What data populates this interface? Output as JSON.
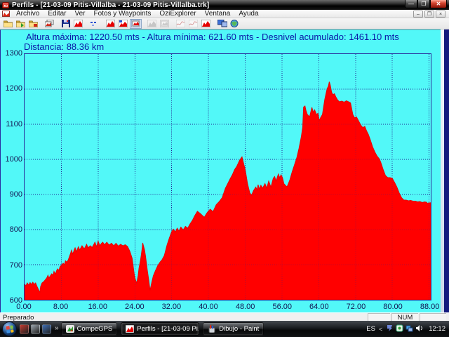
{
  "window": {
    "title": "Perfils - [21-03-09 Pitis-Villalba - 21-03-09 Pitis-Villalba.trk]"
  },
  "menu": {
    "items": [
      "Archivo",
      "Editar",
      "Ver",
      "Fotos y Waypoints",
      "OziExplorer",
      "Ventana",
      "Ayuda"
    ]
  },
  "toolbar": {
    "icons": [
      {
        "name": "open-profile",
        "glyph": "folder",
        "state": "normal",
        "sep": false
      },
      {
        "name": "open-track",
        "glyph": "folder-green",
        "state": "normal",
        "sep": false
      },
      {
        "name": "open-waypoints",
        "glyph": "folder-red",
        "state": "normal",
        "sep": false
      },
      {
        "name": "photos-waypoints",
        "glyph": "photo-stack",
        "state": "normal",
        "sep": true
      },
      {
        "name": "save-profile",
        "glyph": "floppy",
        "state": "normal",
        "sep": true
      },
      {
        "name": "profile-chart",
        "glyph": "chart-red",
        "state": "normal",
        "sep": false
      },
      {
        "name": "marks",
        "glyph": "blue-marks",
        "state": "normal",
        "sep": true
      },
      {
        "name": "altitude-profile",
        "glyph": "chart-red",
        "state": "normal",
        "sep": true
      },
      {
        "name": "speed-profile",
        "glyph": "chart-red-blue",
        "state": "normal",
        "sep": false
      },
      {
        "name": "framed-profile",
        "glyph": "chart-red-framed",
        "state": "pressed",
        "sep": false
      },
      {
        "name": "gray-profile",
        "glyph": "chart-gray",
        "state": "disabled",
        "sep": true
      },
      {
        "name": "gray-framed-profile",
        "glyph": "chart-gray-framed",
        "state": "disabled",
        "sep": false
      },
      {
        "name": "line-chart-a",
        "glyph": "line-gray",
        "state": "disabled",
        "sep": true
      },
      {
        "name": "line-chart-b",
        "glyph": "line-gray",
        "state": "disabled",
        "sep": false
      },
      {
        "name": "red-profile",
        "glyph": "chart-red",
        "state": "normal",
        "sep": false
      },
      {
        "name": "dual-screens",
        "glyph": "screens",
        "state": "normal",
        "sep": true
      },
      {
        "name": "map-view",
        "glyph": "globe",
        "state": "normal",
        "sep": false
      }
    ]
  },
  "header": {
    "stats_line": "Altura máxima: 1220.50 mts - Altura mínima: 621.60 mts - Desnivel acumulado: 1461.10 mts",
    "distance_line": "Distancia: 88.36 km"
  },
  "chart_data": {
    "type": "area",
    "series_name": "altitude-profile",
    "x_unit": "km",
    "y_unit": "mts",
    "x_range": [
      0,
      88.36
    ],
    "y_range": [
      600,
      1300
    ],
    "x_ticks": [
      0,
      8,
      16,
      24,
      32,
      40,
      48,
      56,
      64,
      72,
      80,
      88
    ],
    "x_tick_labels": [
      "0.00",
      "8.00",
      "16.00",
      "24.00",
      "32.00",
      "40.00",
      "48.00",
      "56.00",
      "64.00",
      "72.00",
      "80.00",
      "88.00"
    ],
    "y_ticks": [
      1300,
      1200,
      1100,
      1000,
      900,
      800,
      700,
      600
    ],
    "y_tick_labels": [
      "1300",
      "1200",
      "1100",
      "1000",
      "900",
      "800",
      "700",
      "600"
    ],
    "grid": true,
    "legend": false,
    "bg_color": "#52F8F8",
    "fill_color": "#FF0000",
    "grid_color": "#23238F",
    "max_altitude_mts": 1220.5,
    "min_altitude_mts": 621.6,
    "cumulative_gain_mts": 1461.1,
    "distance_km": 88.36,
    "points": [
      [
        0,
        644
      ],
      [
        0.3,
        640
      ],
      [
        0.6,
        648
      ],
      [
        0.9,
        642
      ],
      [
        1.2,
        649
      ],
      [
        1.5,
        644
      ],
      [
        1.8,
        650
      ],
      [
        2.1,
        644
      ],
      [
        2.4,
        648
      ],
      [
        2.7,
        638
      ],
      [
        3,
        630
      ],
      [
        3.2,
        624
      ],
      [
        3.35,
        622
      ],
      [
        3.5,
        638
      ],
      [
        3.8,
        648
      ],
      [
        4.1,
        651
      ],
      [
        4.4,
        655
      ],
      [
        4.7,
        660
      ],
      [
        4.9,
        664
      ],
      [
        5.1,
        670
      ],
      [
        5.3,
        662
      ],
      [
        5.6,
        668
      ],
      [
        5.9,
        674
      ],
      [
        6.2,
        670
      ],
      [
        6.4,
        681
      ],
      [
        6.7,
        673
      ],
      [
        7,
        684
      ],
      [
        7.2,
        688
      ],
      [
        7.5,
        684
      ],
      [
        7.7,
        694
      ],
      [
        8,
        698
      ],
      [
        8.4,
        704
      ],
      [
        8.7,
        700
      ],
      [
        8.9,
        711
      ],
      [
        9.2,
        707
      ],
      [
        9.5,
        714
      ],
      [
        9.7,
        721
      ],
      [
        10,
        732
      ],
      [
        10.2,
        741
      ],
      [
        10.5,
        730
      ],
      [
        10.8,
        742
      ],
      [
        11,
        748
      ],
      [
        11.3,
        737
      ],
      [
        11.7,
        751
      ],
      [
        12,
        742
      ],
      [
        12.5,
        754
      ],
      [
        13,
        745
      ],
      [
        13.5,
        758
      ],
      [
        13.8,
        748
      ],
      [
        14.3,
        754
      ],
      [
        14.7,
        749
      ],
      [
        15,
        756
      ],
      [
        15.3,
        764
      ],
      [
        15.7,
        751
      ],
      [
        16,
        767
      ],
      [
        16.4,
        754
      ],
      [
        16.7,
        760
      ],
      [
        17,
        764
      ],
      [
        17.4,
        757
      ],
      [
        17.9,
        764
      ],
      [
        18.4,
        756
      ],
      [
        18.9,
        761
      ],
      [
        19.4,
        754
      ],
      [
        19.9,
        761
      ],
      [
        20.4,
        753
      ],
      [
        20.9,
        758
      ],
      [
        21.4,
        754
      ],
      [
        21.9,
        757
      ],
      [
        22.4,
        752
      ],
      [
        22.9,
        738
      ],
      [
        23.4,
        718
      ],
      [
        23.6,
        698
      ],
      [
        23.9,
        668
      ],
      [
        24.2,
        654
      ],
      [
        24.4,
        648
      ],
      [
        24.7,
        668
      ],
      [
        24.9,
        690
      ],
      [
        25.2,
        711
      ],
      [
        25.4,
        728
      ],
      [
        25.6,
        748
      ],
      [
        25.7,
        762
      ],
      [
        25.9,
        752
      ],
      [
        26.1,
        742
      ],
      [
        26.3,
        726
      ],
      [
        26.5,
        706
      ],
      [
        26.7,
        684
      ],
      [
        27,
        658
      ],
      [
        27.3,
        627
      ],
      [
        27.7,
        651
      ],
      [
        28,
        668
      ],
      [
        28.5,
        684
      ],
      [
        29,
        698
      ],
      [
        29.5,
        708
      ],
      [
        29.9,
        714
      ],
      [
        30.4,
        726
      ],
      [
        31,
        756
      ],
      [
        31.5,
        776
      ],
      [
        32,
        794
      ],
      [
        32.4,
        801
      ],
      [
        32.8,
        793
      ],
      [
        33.2,
        804
      ],
      [
        33.6,
        796
      ],
      [
        34,
        807
      ],
      [
        34.5,
        799
      ],
      [
        35,
        809
      ],
      [
        35.5,
        804
      ],
      [
        36,
        816
      ],
      [
        36.5,
        826
      ],
      [
        37,
        839
      ],
      [
        37.6,
        852
      ],
      [
        38.2,
        846
      ],
      [
        38.6,
        841
      ],
      [
        39.1,
        835
      ],
      [
        39.6,
        846
      ],
      [
        40,
        853
      ],
      [
        40.4,
        858
      ],
      [
        41,
        851
      ],
      [
        41.7,
        871
      ],
      [
        42.3,
        879
      ],
      [
        43,
        891
      ],
      [
        43.7,
        918
      ],
      [
        44.2,
        931
      ],
      [
        44.7,
        944
      ],
      [
        45.2,
        956
      ],
      [
        45.7,
        971
      ],
      [
        46.2,
        981
      ],
      [
        46.8,
        998
      ],
      [
        47.3,
        1007
      ],
      [
        47.7,
        986
      ],
      [
        48,
        971
      ],
      [
        48.5,
        931
      ],
      [
        49,
        904
      ],
      [
        49.4,
        898
      ],
      [
        49.8,
        911
      ],
      [
        50.3,
        921
      ],
      [
        50.6,
        913
      ],
      [
        50.8,
        928
      ],
      [
        51.1,
        915
      ],
      [
        51.4,
        926
      ],
      [
        51.8,
        918
      ],
      [
        52.3,
        931
      ],
      [
        52.7,
        918
      ],
      [
        53.1,
        938
      ],
      [
        53.6,
        921
      ],
      [
        54.1,
        946
      ],
      [
        54.4,
        951
      ],
      [
        54.7,
        938
      ],
      [
        55.2,
        958
      ],
      [
        55.5,
        948
      ],
      [
        55.8,
        956
      ],
      [
        56.1,
        948
      ],
      [
        56.4,
        931
      ],
      [
        56.9,
        924
      ],
      [
        57.1,
        922
      ],
      [
        57.7,
        941
      ],
      [
        58.2,
        964
      ],
      [
        58.7,
        984
      ],
      [
        59.2,
        1004
      ],
      [
        59.7,
        1031
      ],
      [
        60.2,
        1064
      ],
      [
        60.5,
        1091
      ],
      [
        60.7,
        1149
      ],
      [
        61,
        1152
      ],
      [
        61.2,
        1140
      ],
      [
        61.5,
        1128
      ],
      [
        62,
        1121
      ],
      [
        62.5,
        1148
      ],
      [
        62.8,
        1134
      ],
      [
        63.1,
        1141
      ],
      [
        63.5,
        1128
      ],
      [
        63.8,
        1131
      ],
      [
        64.1,
        1111
      ],
      [
        64.4,
        1119
      ],
      [
        64.8,
        1128
      ],
      [
        65.3,
        1171
      ],
      [
        65.8,
        1201
      ],
      [
        66.1,
        1209
      ],
      [
        66.3,
        1221
      ],
      [
        66.5,
        1211
      ],
      [
        66.8,
        1191
      ],
      [
        67.1,
        1184
      ],
      [
        67.4,
        1187
      ],
      [
        67.7,
        1178
      ],
      [
        68.1,
        1169
      ],
      [
        68.5,
        1164
      ],
      [
        69,
        1166
      ],
      [
        69.5,
        1163
      ],
      [
        70,
        1167
      ],
      [
        70.5,
        1164
      ],
      [
        70.9,
        1161
      ],
      [
        71.4,
        1128
      ],
      [
        71.8,
        1118
      ],
      [
        72.2,
        1121
      ],
      [
        72.6,
        1111
      ],
      [
        73,
        1101
      ],
      [
        73.4,
        1093
      ],
      [
        73.7,
        1091
      ],
      [
        74,
        1094
      ],
      [
        74.4,
        1081
      ],
      [
        74.8,
        1071
      ],
      [
        75.2,
        1056
      ],
      [
        75.7,
        1036
      ],
      [
        76.2,
        1021
      ],
      [
        76.7,
        1009
      ],
      [
        77.2,
        1001
      ],
      [
        77.5,
        991
      ],
      [
        78,
        971
      ],
      [
        78.5,
        954
      ],
      [
        79,
        948
      ],
      [
        79.5,
        948
      ],
      [
        80,
        946
      ],
      [
        80.5,
        934
      ],
      [
        81,
        921
      ],
      [
        81.5,
        904
      ],
      [
        82,
        891
      ],
      [
        82.5,
        884
      ],
      [
        83,
        884
      ],
      [
        83.5,
        882
      ],
      [
        84,
        883
      ],
      [
        84.5,
        881
      ],
      [
        85,
        881
      ],
      [
        85.5,
        879
      ],
      [
        86,
        880
      ],
      [
        86.5,
        877
      ],
      [
        87,
        879
      ],
      [
        87.4,
        878
      ],
      [
        87.7,
        874
      ],
      [
        88,
        877
      ],
      [
        88.2,
        875
      ],
      [
        88.36,
        877
      ]
    ]
  },
  "statusbar": {
    "ready": "Preparado",
    "num": "NUM"
  },
  "taskbar": {
    "quick_launch": [
      {
        "name": "quicklaunch-media",
        "color": "#c43a2e"
      },
      {
        "name": "quicklaunch-show-desktop",
        "color": "#9aa4ad"
      },
      {
        "name": "quicklaunch-switch-windows",
        "color": "#3f6fb5"
      }
    ],
    "overflow_label": "»",
    "buttons": [
      {
        "label": "CompeGPS",
        "icon": "compegps",
        "active": false
      },
      {
        "label": "Perfils - [21-03-09 Pi...",
        "icon": "perfils",
        "active": true
      },
      {
        "label": "Dibujo - Paint",
        "icon": "paint",
        "active": false
      }
    ],
    "tray": {
      "lang": "ES",
      "chevron": "<",
      "time": "12:12",
      "icons": [
        "tray-app-blue",
        "tray-gps-green",
        "tray-network",
        "tray-volume"
      ]
    }
  },
  "mdi_controls": {
    "minimize": "–",
    "restore": "❐",
    "close": "×"
  },
  "window_controls": {
    "minimize": "—",
    "maximize": "❐",
    "close": "✕"
  }
}
